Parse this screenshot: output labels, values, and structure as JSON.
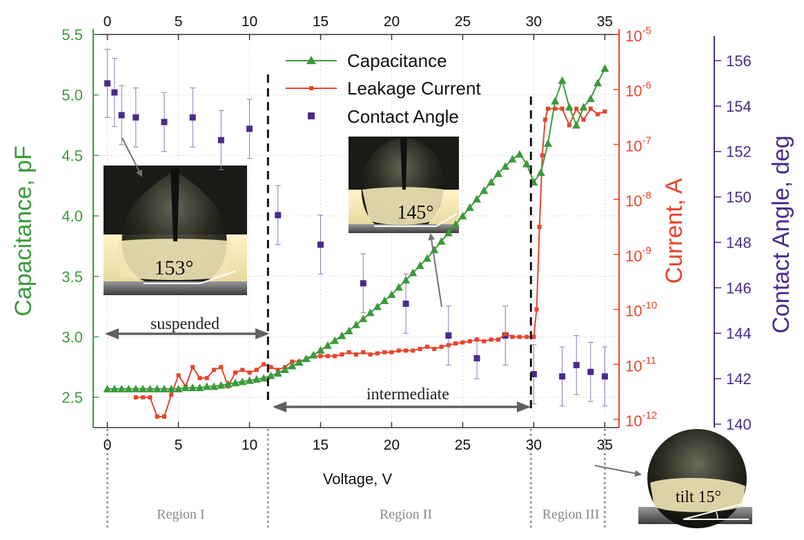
{
  "chart_data": {
    "type": "line",
    "xlabel": "Voltage, V",
    "xlim": [
      -1,
      36
    ],
    "x_ticks": [
      0,
      5,
      10,
      15,
      20,
      25,
      30,
      35
    ],
    "axes": {
      "capacitance": {
        "label": "Capacitance, pF",
        "range": [
          2.25,
          5.5
        ],
        "ticks": [
          2.5,
          3.0,
          3.5,
          4.0,
          4.5,
          5.0,
          5.5
        ],
        "tick_labels": [
          "2.5",
          "3.0",
          "3.5",
          "4.0",
          "4.5",
          "5.0",
          "5.5"
        ]
      },
      "current": {
        "label": "Current, A",
        "scale": "log",
        "exp_range": [
          -12.15,
          -5
        ],
        "ticks": [
          -12,
          -11,
          -10,
          -9,
          -8,
          -7,
          -6,
          -5
        ],
        "tick_labels": [
          "10-12",
          "10-11",
          "10-10",
          "10-9",
          "10-8",
          "10-7",
          "10-6",
          "10-5"
        ]
      },
      "angle": {
        "label": "Contact Angle, deg",
        "range": [
          140,
          157
        ],
        "ticks": [
          140,
          142,
          144,
          146,
          148,
          150,
          152,
          154,
          156
        ],
        "tick_labels": [
          "140",
          "142",
          "144",
          "146",
          "148",
          "150",
          "152",
          "154",
          "156"
        ]
      }
    },
    "series": [
      {
        "name": "Capacitance",
        "axis": "capacitance",
        "color": "#3a9a3a",
        "marker": "triangle",
        "x": [
          0,
          0.5,
          1,
          1.5,
          2,
          2.5,
          3,
          3.5,
          4,
          4.5,
          5,
          5.5,
          6,
          6.5,
          7,
          7.5,
          8,
          8.5,
          9,
          9.5,
          10,
          10.5,
          11,
          11.5,
          12,
          12.5,
          13,
          13.5,
          14,
          14.5,
          15,
          15.5,
          16,
          16.5,
          17,
          17.5,
          18,
          18.5,
          19,
          19.5,
          20,
          20.5,
          21,
          21.5,
          22,
          22.5,
          23,
          23.5,
          24,
          24.5,
          25,
          25.5,
          26,
          26.5,
          27,
          27.5,
          28,
          28.5,
          29,
          29.5,
          30,
          30.5,
          31,
          31.5,
          32,
          32.5,
          33,
          33.5,
          34,
          34.5,
          35
        ],
        "values": [
          2.57,
          2.57,
          2.57,
          2.57,
          2.57,
          2.57,
          2.57,
          2.57,
          2.57,
          2.57,
          2.57,
          2.58,
          2.58,
          2.58,
          2.59,
          2.59,
          2.6,
          2.61,
          2.62,
          2.63,
          2.64,
          2.65,
          2.66,
          2.68,
          2.7,
          2.73,
          2.76,
          2.79,
          2.82,
          2.85,
          2.89,
          2.93,
          2.97,
          3.01,
          3.05,
          3.1,
          3.15,
          3.2,
          3.25,
          3.3,
          3.35,
          3.41,
          3.47,
          3.53,
          3.59,
          3.65,
          3.72,
          3.79,
          3.86,
          3.93,
          4.0,
          4.07,
          4.14,
          4.21,
          4.28,
          4.35,
          4.41,
          4.47,
          4.51,
          4.43,
          4.28,
          4.36,
          4.6,
          4.95,
          5.12,
          4.9,
          4.75,
          4.9,
          4.97,
          5.1,
          5.22
        ]
      },
      {
        "name": "Leakage Current",
        "axis": "current",
        "color": "#e8432c",
        "marker": "square",
        "x": [
          2,
          2.5,
          3,
          3.5,
          4,
          4.5,
          5,
          5.5,
          6,
          6.5,
          7,
          7.5,
          8,
          8.5,
          9,
          9.5,
          10,
          10.5,
          11,
          11.5,
          12,
          12.5,
          13,
          13.5,
          14,
          14.5,
          15,
          15.5,
          16,
          16.5,
          17,
          17.5,
          18,
          18.5,
          19,
          19.5,
          20,
          20.5,
          21,
          21.5,
          22,
          22.5,
          23,
          23.5,
          24,
          24.5,
          25,
          25.5,
          26,
          26.5,
          27,
          27.5,
          28,
          28.5,
          29,
          29.5,
          30,
          30.2,
          30.4,
          30.6,
          30.8,
          31,
          31.5,
          32,
          32.5,
          33,
          33.5,
          34,
          34.5,
          35
        ],
        "exponents": [
          -11.6,
          -11.6,
          -11.6,
          -11.95,
          -11.95,
          -11.55,
          -11.2,
          -11.4,
          -11.05,
          -11.25,
          -11.25,
          -11.1,
          -11.05,
          -11.4,
          -11.15,
          -11.1,
          -11.15,
          -11.1,
          -11.0,
          -11.05,
          -11.1,
          -11.05,
          -10.95,
          -10.95,
          -10.9,
          -10.85,
          -10.85,
          -10.85,
          -10.85,
          -10.82,
          -10.78,
          -10.82,
          -10.78,
          -10.82,
          -10.8,
          -10.78,
          -10.78,
          -10.75,
          -10.75,
          -10.75,
          -10.72,
          -10.68,
          -10.72,
          -10.68,
          -10.65,
          -10.62,
          -10.6,
          -10.58,
          -10.55,
          -10.58,
          -10.55,
          -10.55,
          -10.45,
          -10.5,
          -10.5,
          -10.5,
          -10.5,
          -10.0,
          -8.5,
          -7.2,
          -6.55,
          -6.35,
          -6.35,
          -6.35,
          -6.65,
          -6.35,
          -6.55,
          -6.35,
          -6.45,
          -6.4
        ]
      },
      {
        "name": "Contact Angle",
        "axis": "angle",
        "color": "#4b2a8c",
        "marker": "square",
        "x": [
          0,
          0.5,
          1,
          2,
          4,
          6,
          8,
          10,
          12,
          15,
          18,
          21,
          24,
          26,
          28,
          30,
          32,
          33,
          34,
          35
        ],
        "values": [
          155.0,
          154.6,
          153.6,
          153.5,
          153.3,
          153.5,
          152.5,
          153.0,
          149.2,
          147.9,
          146.2,
          145.3,
          143.9,
          142.9,
          143.9,
          142.2,
          142.1,
          142.6,
          142.3,
          142.1
        ],
        "errors": [
          1.5,
          1.5,
          1.3,
          1.3,
          1.3,
          1.3,
          1.3,
          1.3,
          1.3,
          1.3,
          1.3,
          1.3,
          1.3,
          0.9,
          1.3,
          1.3,
          1.3,
          1.3,
          1.3,
          1.3
        ]
      }
    ],
    "legend": {
      "position": "top-center",
      "entries": [
        "Capacitance",
        "Leakage Current",
        "Contact Angle"
      ]
    },
    "region_boundaries": [
      0,
      11.3,
      29.8,
      35
    ],
    "annotations": {
      "arrow_suspended": "suspended",
      "arrow_intermediate": "intermediate",
      "angle_153": "153°",
      "angle_145": "145°",
      "tilt": "tilt 15°",
      "regions": [
        "Region I",
        "Region II",
        "Region III"
      ]
    }
  }
}
